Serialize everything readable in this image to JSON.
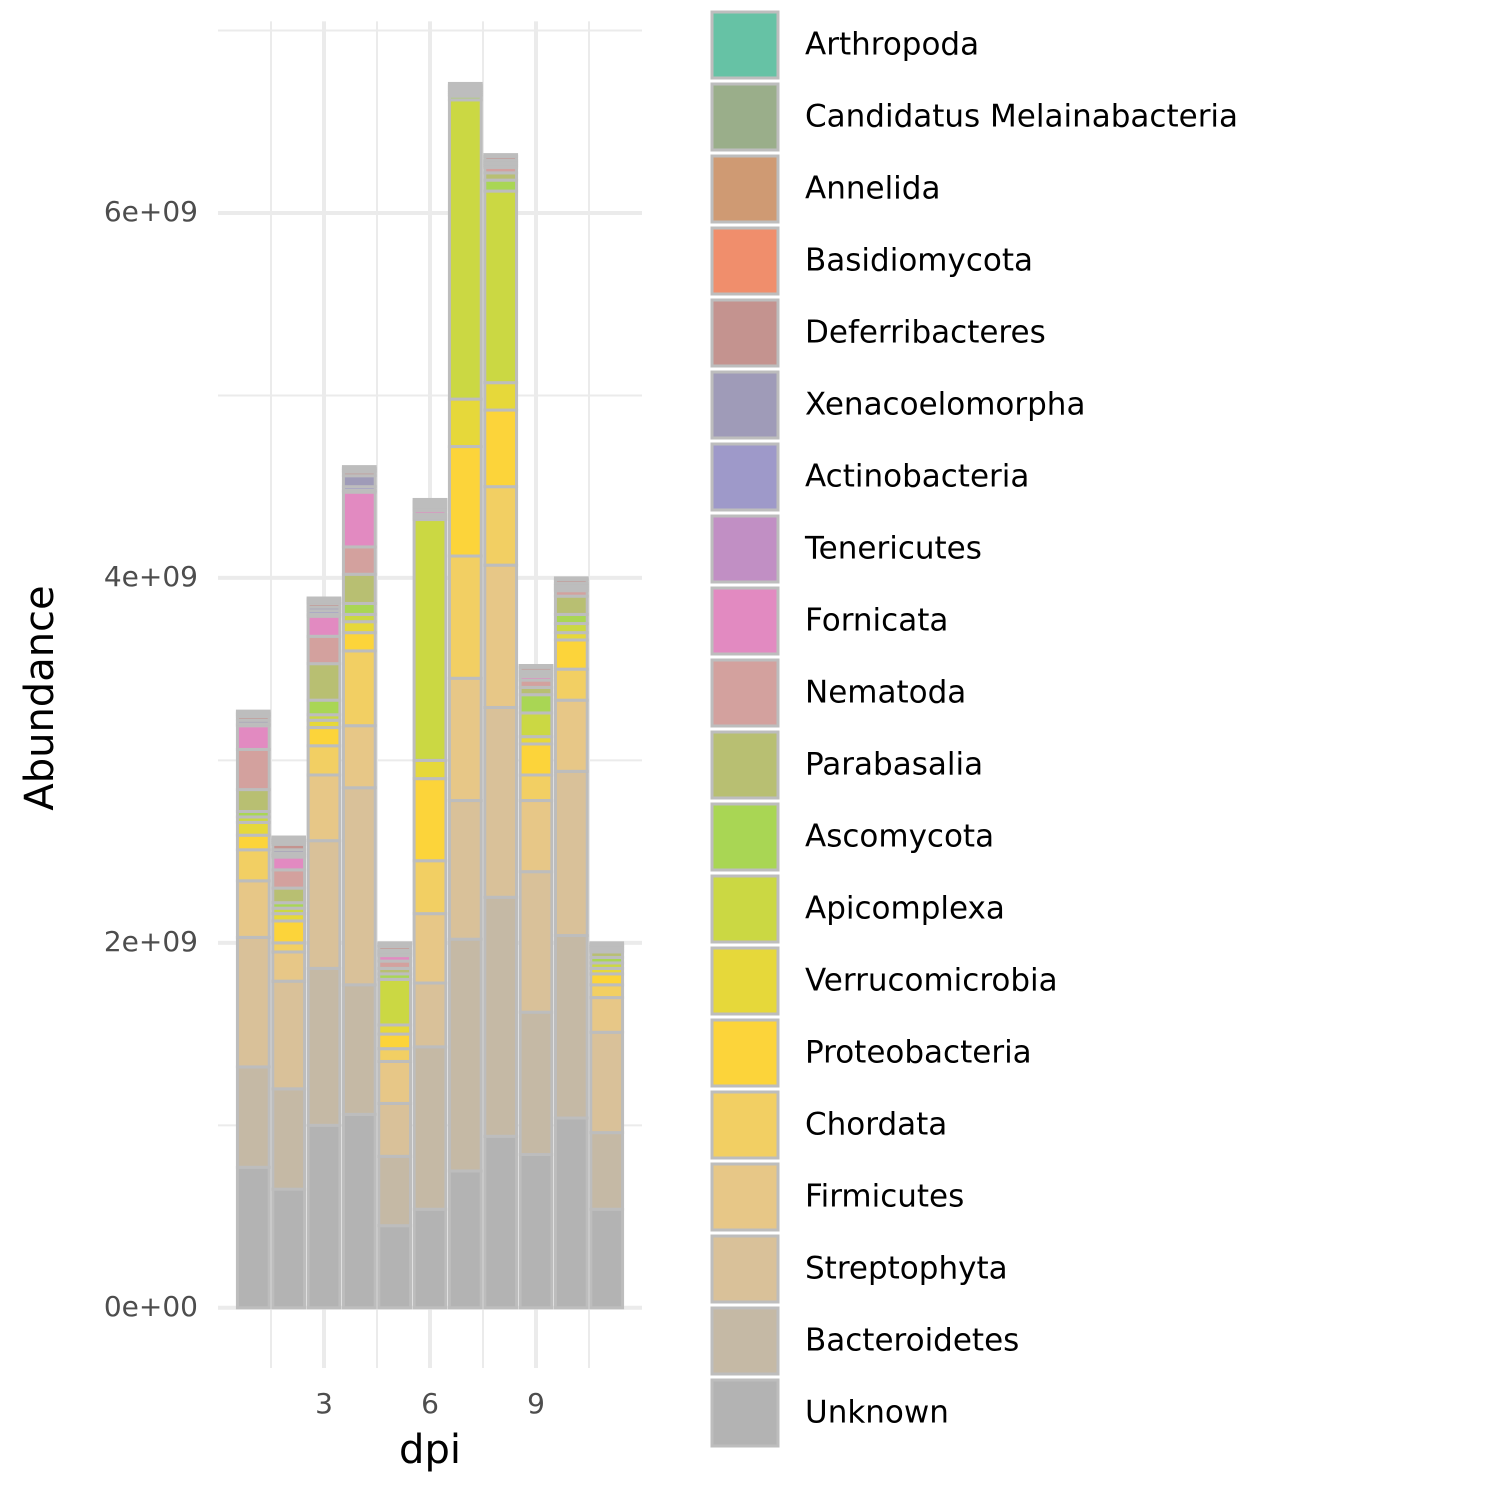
{
  "chart_data": {
    "type": "bar",
    "stacked": true,
    "x_label": "dpi",
    "y_label": "Abundance",
    "x": [
      1,
      2,
      3,
      4,
      5,
      6,
      7,
      8,
      9,
      10,
      11
    ],
    "xlim": [
      0,
      12
    ],
    "xticks": [
      3,
      6,
      9
    ],
    "ylim": [
      -330000000,
      7050000000
    ],
    "yticks": [
      {
        "value": 0,
        "label": "0e+00"
      },
      {
        "value": 2000000000,
        "label": "2e+09"
      },
      {
        "value": 4000000000,
        "label": "4e+09"
      },
      {
        "value": 6000000000,
        "label": "6e+09"
      }
    ],
    "grid": true,
    "legend": "right",
    "series": [
      {
        "name": "Arthropoda",
        "color": "#66c2a5",
        "values": [
          0,
          10000000.0,
          0,
          0,
          0,
          0,
          0,
          0,
          0,
          0,
          0
        ]
      },
      {
        "name": "Candidatus Melainabacteria",
        "color": "#9aae8a",
        "values": [
          10000000.0,
          10000000.0,
          10000000.0,
          10000000.0,
          0,
          0,
          0,
          0,
          0,
          0,
          0
        ]
      },
      {
        "name": "Annelida",
        "color": "#cf9a73",
        "values": [
          10000000.0,
          10000000.0,
          10000000.0,
          10000000.0,
          10000000.0,
          10000000.0,
          0,
          0,
          0,
          0,
          0
        ]
      },
      {
        "name": "Basidiomycota",
        "color": "#f08e6c",
        "values": [
          10000000.0,
          10000000.0,
          10000000.0,
          10000000.0,
          10000000.0,
          10000000.0,
          0,
          10000000.0,
          10000000.0,
          10000000.0,
          0
        ]
      },
      {
        "name": "Deferribacteres",
        "color": "#c4938f",
        "values": [
          20000000.0,
          30000000.0,
          20000000.0,
          20000000.0,
          20000000.0,
          10000000.0,
          10000000.0,
          20000000.0,
          20000000.0,
          20000000.0,
          10000000.0
        ]
      },
      {
        "name": "Xenacoelomorpha",
        "color": "#9f9bb8",
        "values": [
          20000000.0,
          20000000.0,
          20000000.0,
          60000000.0,
          10000000.0,
          10000000.0,
          10000000.0,
          10000000.0,
          10000000.0,
          10000000.0,
          10000000.0
        ]
      },
      {
        "name": "Actinobacteria",
        "color": "#9e99c9",
        "values": [
          10000000.0,
          10000000.0,
          20000000.0,
          20000000.0,
          10000000.0,
          10000000.0,
          10000000.0,
          10000000.0,
          10000000.0,
          10000000.0,
          0
        ]
      },
      {
        "name": "Tenericutes",
        "color": "#c18fc4",
        "values": [
          0,
          10000000.0,
          10000000.0,
          10000000.0,
          10000000.0,
          10000000.0,
          10000000.0,
          10000000.0,
          10000000.0,
          10000000.0,
          10000000.0
        ]
      },
      {
        "name": "Fornicata",
        "color": "#e28ac1",
        "values": [
          130000000.0,
          70000000.0,
          110000000.0,
          300000000.0,
          30000000.0,
          20000000.0,
          10000000.0,
          10000000.0,
          20000000.0,
          10000000.0,
          10000000.0
        ]
      },
      {
        "name": "Nematoda",
        "color": "#d3a19e",
        "values": [
          220000000.0,
          100000000.0,
          150000000.0,
          150000000.0,
          40000000.0,
          10000000.0,
          10000000.0,
          30000000.0,
          40000000.0,
          30000000.0,
          10000000.0
        ]
      },
      {
        "name": "Parabasalia",
        "color": "#b8bf72",
        "values": [
          120000000.0,
          80000000.0,
          200000000.0,
          160000000.0,
          30000000.0,
          10000000.0,
          10000000.0,
          40000000.0,
          40000000.0,
          100000000.0,
          30000000.0
        ]
      },
      {
        "name": "Ascomycota",
        "color": "#a9d654",
        "values": [
          30000000.0,
          30000000.0,
          80000000.0,
          60000000.0,
          30000000.0,
          10000000.0,
          20000000.0,
          60000000.0,
          100000000.0,
          50000000.0,
          30000000.0
        ]
      },
      {
        "name": "Apicomplexa",
        "color": "#cbd843",
        "values": [
          30000000.0,
          30000000.0,
          30000000.0,
          40000000.0,
          250000000.0,
          1320000000.0,
          1640000000.0,
          1050000000.0,
          130000000.0,
          50000000.0,
          30000000.0
        ]
      },
      {
        "name": "Verrucomicrobia",
        "color": "#e6d83a",
        "values": [
          70000000.0,
          40000000.0,
          40000000.0,
          60000000.0,
          50000000.0,
          100000000.0,
          260000000.0,
          150000000.0,
          40000000.0,
          40000000.0,
          30000000.0
        ]
      },
      {
        "name": "Proteobacteria",
        "color": "#fcd43a",
        "values": [
          80000000.0,
          120000000.0,
          100000000.0,
          100000000.0,
          80000000.0,
          450000000.0,
          600000000.0,
          420000000.0,
          170000000.0,
          160000000.0,
          60000000.0
        ]
      },
      {
        "name": "Chordata",
        "color": "#f2cf63",
        "values": [
          170000000.0,
          50000000.0,
          160000000.0,
          410000000.0,
          70000000.0,
          290000000.0,
          670000000.0,
          430000000.0,
          140000000.0,
          170000000.0,
          70000000.0
        ]
      },
      {
        "name": "Firmicutes",
        "color": "#e7c787",
        "values": [
          310000000.0,
          160000000.0,
          360000000.0,
          340000000.0,
          230000000.0,
          380000000.0,
          670000000.0,
          780000000.0,
          390000000.0,
          390000000.0,
          190000000.0
        ]
      },
      {
        "name": "Streptophyta",
        "color": "#d9c199",
        "values": [
          710000000.0,
          590000000.0,
          700000000.0,
          1080000000.0,
          290000000.0,
          350000000.0,
          760000000.0,
          1040000000.0,
          770000000.0,
          900000000.0,
          550000000.0
        ]
      },
      {
        "name": "Bacteroidetes",
        "color": "#c5b9a5",
        "values": [
          550000000.0,
          550000000.0,
          860000000.0,
          710000000.0,
          380000000.0,
          890000000.0,
          1270000000.0,
          1310000000.0,
          780000000.0,
          1000000000.0,
          420000000.0
        ]
      },
      {
        "name": "Unknown",
        "color": "#b3b3b3",
        "values": [
          770000000.0,
          650000000.0,
          1000000000.0,
          1060000000.0,
          450000000.0,
          540000000.0,
          750000000.0,
          940000000.0,
          840000000.0,
          1040000000.0,
          540000000.0
        ]
      }
    ]
  }
}
